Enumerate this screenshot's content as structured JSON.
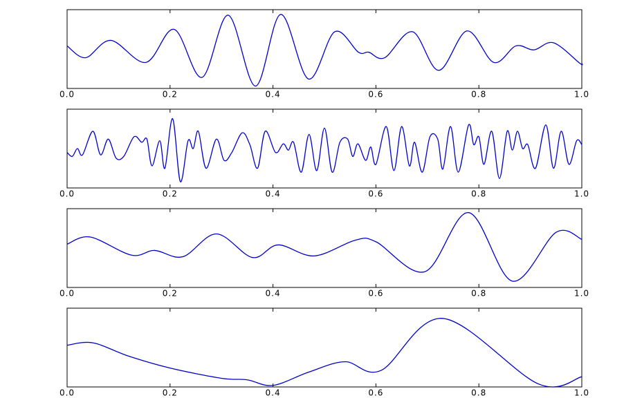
{
  "chart_data": [
    {
      "type": "line",
      "color": "#0000cc",
      "x": [
        0,
        0.036,
        0.085,
        0.153,
        0.208,
        0.262,
        0.313,
        0.366,
        0.415,
        0.469,
        0.52,
        0.566,
        0.586,
        0.617,
        0.671,
        0.722,
        0.777,
        0.829,
        0.872,
        0.907,
        0.945,
        0.996,
        1
      ],
      "values": [
        0.54,
        0.39,
        0.61,
        0.33,
        0.75,
        0.14,
        0.93,
        0.03,
        0.94,
        0.12,
        0.72,
        0.46,
        0.46,
        0.39,
        0.72,
        0.23,
        0.73,
        0.33,
        0.54,
        0.49,
        0.58,
        0.32,
        0.32
      ],
      "xlim": [
        0,
        1
      ],
      "ylim": [
        0,
        1
      ],
      "xticks": [
        {
          "value": 0,
          "label": "0.0"
        },
        0.2,
        0.4,
        0.6,
        0.8,
        {
          "value": 1,
          "label": "1.0"
        }
      ]
    },
    {
      "type": "line",
      "color": "#0000cc",
      "x": [
        0,
        0.01,
        0.02,
        0.03,
        0.05,
        0.065,
        0.08,
        0.095,
        0.11,
        0.13,
        0.145,
        0.155,
        0.165,
        0.18,
        0.19,
        0.205,
        0.22,
        0.235,
        0.245,
        0.255,
        0.27,
        0.29,
        0.305,
        0.32,
        0.34,
        0.355,
        0.37,
        0.385,
        0.405,
        0.42,
        0.43,
        0.44,
        0.455,
        0.47,
        0.485,
        0.5,
        0.515,
        0.53,
        0.545,
        0.555,
        0.565,
        0.58,
        0.59,
        0.6,
        0.62,
        0.635,
        0.65,
        0.665,
        0.675,
        0.69,
        0.705,
        0.72,
        0.73,
        0.745,
        0.76,
        0.78,
        0.79,
        0.8,
        0.81,
        0.825,
        0.84,
        0.855,
        0.865,
        0.875,
        0.885,
        0.895,
        0.91,
        0.93,
        0.945,
        0.96,
        0.975,
        0.99,
        1
      ],
      "values": [
        0.45,
        0.4,
        0.5,
        0.42,
        0.72,
        0.42,
        0.62,
        0.38,
        0.4,
        0.65,
        0.58,
        0.62,
        0.28,
        0.6,
        0.25,
        0.88,
        0.08,
        0.6,
        0.5,
        0.72,
        0.25,
        0.62,
        0.35,
        0.45,
        0.7,
        0.55,
        0.25,
        0.72,
        0.45,
        0.56,
        0.48,
        0.58,
        0.2,
        0.68,
        0.22,
        0.76,
        0.2,
        0.58,
        0.62,
        0.4,
        0.56,
        0.35,
        0.52,
        0.3,
        0.78,
        0.22,
        0.78,
        0.28,
        0.58,
        0.2,
        0.65,
        0.62,
        0.24,
        0.78,
        0.2,
        0.8,
        0.55,
        0.65,
        0.3,
        0.72,
        0.12,
        0.72,
        0.48,
        0.72,
        0.5,
        0.55,
        0.25,
        0.8,
        0.25,
        0.72,
        0.3,
        0.6,
        0.55
      ],
      "xlim": [
        0,
        1
      ],
      "ylim": [
        0,
        1
      ],
      "xticks": [
        {
          "value": 0,
          "label": "0.0"
        },
        0.2,
        0.4,
        0.6,
        0.8,
        {
          "value": 1,
          "label": "1.0"
        }
      ]
    },
    {
      "type": "line",
      "color": "#0000cc",
      "x": [
        0,
        0.045,
        0.125,
        0.17,
        0.225,
        0.29,
        0.36,
        0.41,
        0.48,
        0.56,
        0.6,
        0.695,
        0.78,
        0.865,
        0.95,
        1
      ],
      "values": [
        0.55,
        0.64,
        0.41,
        0.47,
        0.39,
        0.68,
        0.38,
        0.54,
        0.4,
        0.6,
        0.58,
        0.2,
        0.95,
        0.08,
        0.7,
        0.61
      ],
      "xlim": [
        0,
        1
      ],
      "ylim": [
        0,
        1
      ],
      "xticks": [
        {
          "value": 0,
          "label": "0.0"
        },
        0.2,
        0.4,
        0.6,
        0.8,
        {
          "value": 1,
          "label": "1.0"
        }
      ]
    },
    {
      "type": "line",
      "color": "#0000cc",
      "x": [
        0,
        0.05,
        0.12,
        0.2,
        0.3,
        0.35,
        0.4,
        0.47,
        0.54,
        0.61,
        0.73,
        0.915,
        1
      ],
      "values": [
        0.53,
        0.56,
        0.39,
        0.24,
        0.11,
        0.09,
        0.02,
        0.19,
        0.32,
        0.21,
        0.87,
        0.04,
        0.13
      ],
      "xlim": [
        0,
        1
      ],
      "ylim": [
        0,
        1
      ],
      "xticks": [
        {
          "value": 0,
          "label": "0.0"
        },
        0.2,
        0.4,
        0.6,
        0.8,
        {
          "value": 1,
          "label": "1.0"
        }
      ]
    }
  ]
}
